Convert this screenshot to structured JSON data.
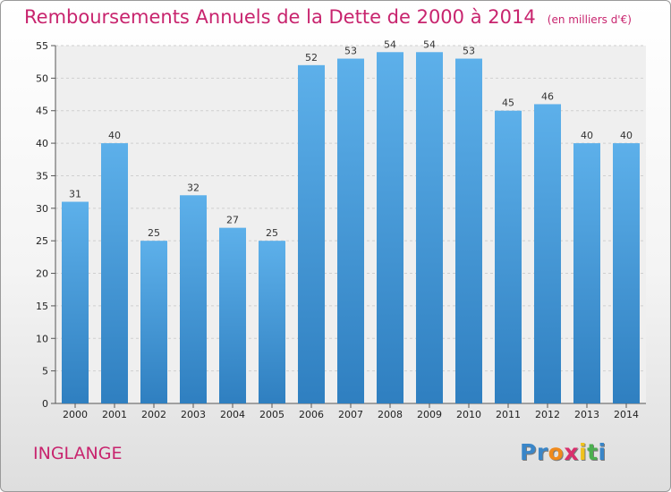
{
  "chart_data": {
    "type": "bar",
    "title": "Remboursements Annuels de la Dette de 2000 à 2014",
    "unit_note": "(en milliers d'€)",
    "categories": [
      "2000",
      "2001",
      "2002",
      "2003",
      "2004",
      "2005",
      "2006",
      "2007",
      "2008",
      "2009",
      "2010",
      "2011",
      "2012",
      "2013",
      "2014"
    ],
    "values": [
      31,
      40,
      25,
      32,
      27,
      25,
      52,
      53,
      54,
      54,
      53,
      45,
      46,
      40,
      40
    ],
    "xlabel": "",
    "ylabel": "",
    "ylim": [
      0,
      55
    ],
    "yticks": [
      0,
      5,
      10,
      15,
      20,
      25,
      30,
      35,
      40,
      45,
      50,
      55
    ],
    "grid": true,
    "bar_color": "#4a9fdf"
  },
  "commune": "INGLANGE",
  "logo": {
    "letters": [
      "P",
      "r",
      "o",
      "x",
      "i",
      "t",
      "i"
    ],
    "colors": [
      "#3a86c8",
      "#3a86c8",
      "#f08a1c",
      "#d92f6d",
      "#f0c21c",
      "#4caf50",
      "#3a86c8"
    ]
  }
}
